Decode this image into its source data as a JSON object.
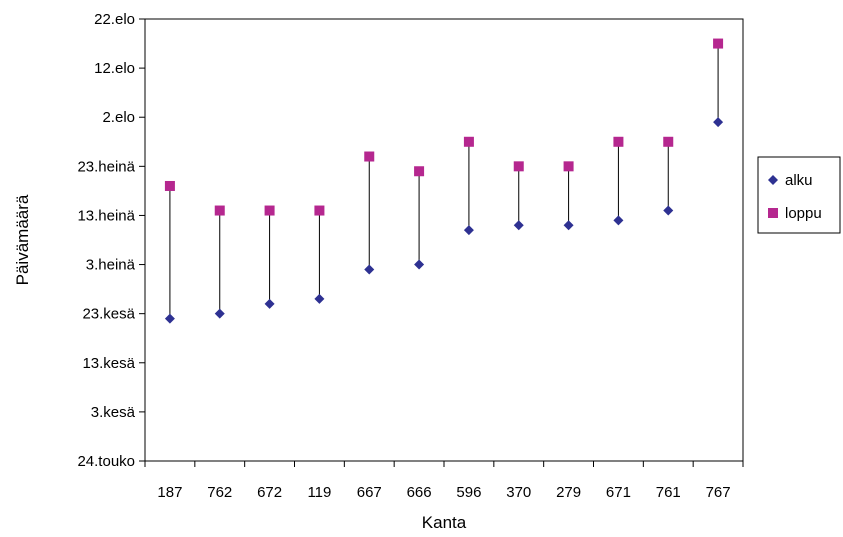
{
  "chart_data": {
    "type": "scatter",
    "title": "",
    "xlabel": "Kanta",
    "ylabel": "Päivämäärä",
    "categories": [
      "187",
      "762",
      "672",
      "119",
      "667",
      "666",
      "596",
      "370",
      "279",
      "671",
      "761",
      "767"
    ],
    "y_ticks": [
      {
        "date": "2009-05-24",
        "label": "24.touko"
      },
      {
        "date": "2009-06-03",
        "label": "3.kesä"
      },
      {
        "date": "2009-06-13",
        "label": "13.kesä"
      },
      {
        "date": "2009-06-23",
        "label": "23.kesä"
      },
      {
        "date": "2009-07-03",
        "label": "3.heinä"
      },
      {
        "date": "2009-07-13",
        "label": "13.heinä"
      },
      {
        "date": "2009-07-23",
        "label": "23.heinä"
      },
      {
        "date": "2009-08-02",
        "label": "2.elo"
      },
      {
        "date": "2009-08-12",
        "label": "12.elo"
      },
      {
        "date": "2009-08-22",
        "label": "22.elo"
      }
    ],
    "ylim": [
      "2009-05-24",
      "2009-08-22"
    ],
    "series": [
      {
        "name": "alku",
        "marker": "diamond",
        "color": "#2e3192",
        "values": [
          "2009-06-22",
          "2009-06-23",
          "2009-06-25",
          "2009-06-26",
          "2009-07-02",
          "2009-07-03",
          "2009-07-10",
          "2009-07-11",
          "2009-07-11",
          "2009-07-12",
          "2009-07-14",
          "2009-08-01"
        ]
      },
      {
        "name": "loppu",
        "marker": "square",
        "color": "#b5278f",
        "values": [
          "2009-07-19",
          "2009-07-14",
          "2009-07-14",
          "2009-07-14",
          "2009-07-25",
          "2009-07-22",
          "2009-07-28",
          "2009-07-23",
          "2009-07-23",
          "2009-07-28",
          "2009-07-28",
          "2009-08-17"
        ]
      }
    ],
    "connector_lines": true,
    "grid": false,
    "legend_position": "right"
  }
}
